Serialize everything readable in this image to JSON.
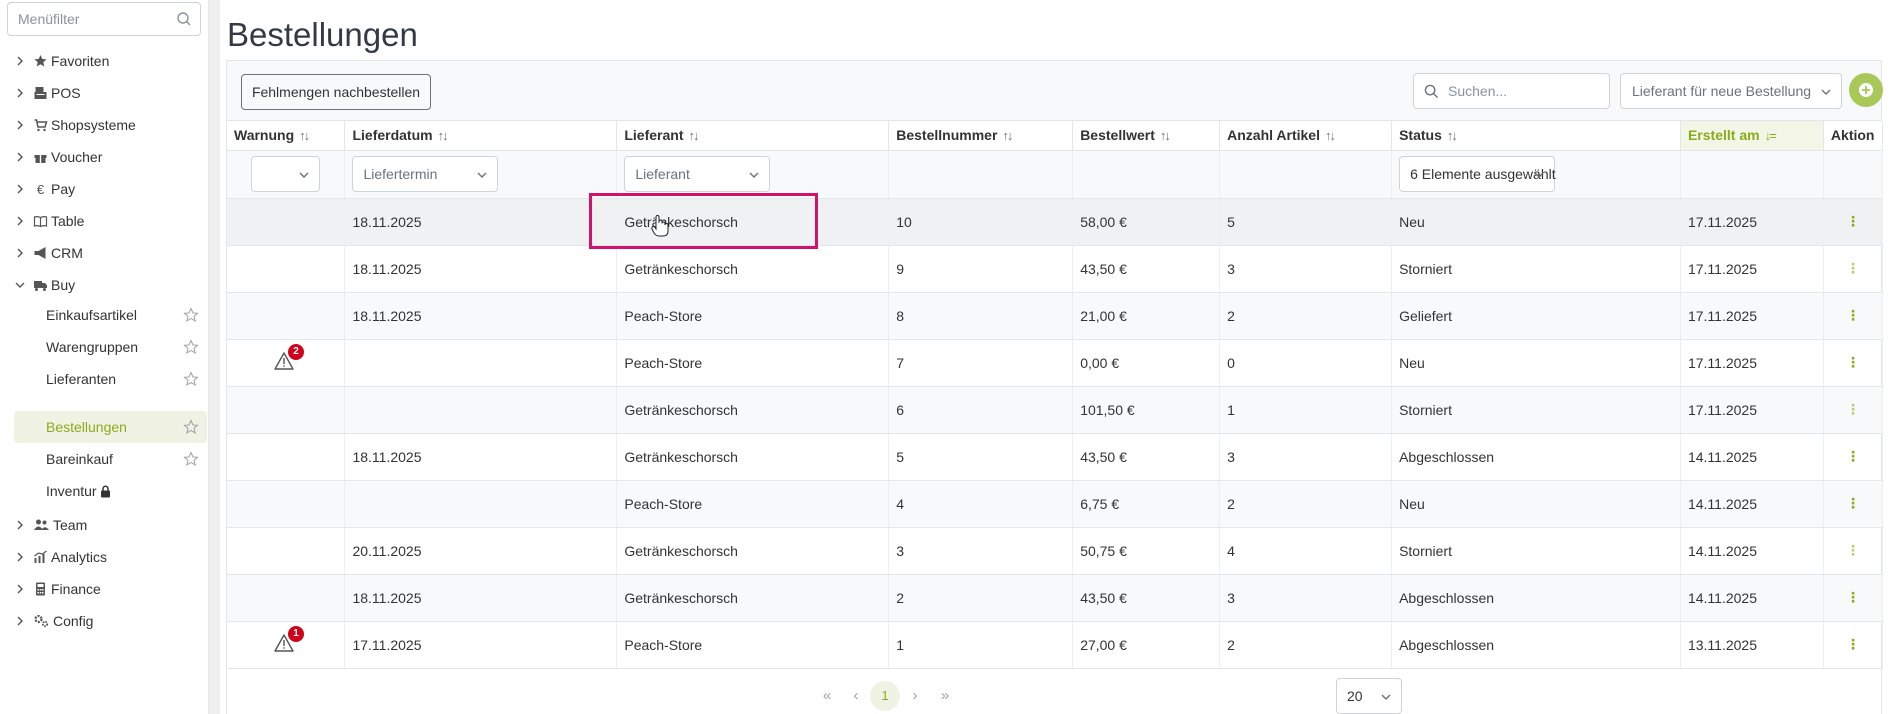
{
  "sidebar": {
    "filter_placeholder": "Menüfilter",
    "items": [
      {
        "label": "Favoriten",
        "icon": "star-icon"
      },
      {
        "label": "POS",
        "icon": "pos-icon"
      },
      {
        "label": "Shopsysteme",
        "icon": "cart-icon"
      },
      {
        "label": "Voucher",
        "icon": "gift-icon"
      },
      {
        "label": "Pay",
        "icon": "euro-icon"
      },
      {
        "label": "Table",
        "icon": "book-icon"
      },
      {
        "label": "CRM",
        "icon": "megaphone-icon"
      },
      {
        "label": "Buy",
        "icon": "truck-icon"
      },
      {
        "label": "Team",
        "icon": "users-icon"
      },
      {
        "label": "Analytics",
        "icon": "chart-icon"
      },
      {
        "label": "Finance",
        "icon": "calculator-icon"
      },
      {
        "label": "Config",
        "icon": "cogs-icon"
      }
    ],
    "buy_subitems": [
      {
        "label": "Einkaufsartikel"
      },
      {
        "label": "Warengruppen"
      },
      {
        "label": "Lieferanten"
      },
      {
        "label": "Bestellungen"
      },
      {
        "label": "Bareinkauf"
      },
      {
        "label": "Inventur"
      }
    ]
  },
  "page": {
    "title": "Bestellungen"
  },
  "toolbar": {
    "reorder_label": "Fehlmengen nachbestellen",
    "search_placeholder": "Suchen...",
    "supplier_placeholder": "Lieferant für neue Bestellung"
  },
  "table": {
    "columns": [
      "Warnung",
      "Lieferdatum",
      "Lieferant",
      "Bestellnummer",
      "Bestellwert",
      "Anzahl Artikel",
      "Status",
      "Erstellt am",
      "Aktion"
    ],
    "filters": {
      "lieferdatum": "Liefertermin",
      "lieferant": "Lieferant",
      "status": "6 Elemente ausgewählt"
    },
    "rows": [
      {
        "warn": "",
        "lieferdatum": "18.11.2025",
        "lieferant": "Getränkeschorsch",
        "nummer": "10",
        "wert": "58,00 €",
        "anzahl": "5",
        "status": "Neu",
        "erstellt": "17.11.2025",
        "action": "⋮"
      },
      {
        "warn": "",
        "lieferdatum": "18.11.2025",
        "lieferant": "Getränkeschorsch",
        "nummer": "9",
        "wert": "43,50 €",
        "anzahl": "3",
        "status": "Storniert",
        "erstellt": "17.11.2025",
        "action": "⋮"
      },
      {
        "warn": "",
        "lieferdatum": "18.11.2025",
        "lieferant": "Peach-Store",
        "nummer": "8",
        "wert": "21,00 €",
        "anzahl": "2",
        "status": "Geliefert",
        "erstellt": "17.11.2025",
        "action": "⋮"
      },
      {
        "warn": "2",
        "lieferdatum": "",
        "lieferant": "Peach-Store",
        "nummer": "7",
        "wert": "0,00 €",
        "anzahl": "0",
        "status": "Neu",
        "erstellt": "17.11.2025",
        "action": "⋮"
      },
      {
        "warn": "",
        "lieferdatum": "",
        "lieferant": "Getränkeschorsch",
        "nummer": "6",
        "wert": "101,50 €",
        "anzahl": "1",
        "status": "Storniert",
        "erstellt": "17.11.2025",
        "action": "⋮"
      },
      {
        "warn": "",
        "lieferdatum": "18.11.2025",
        "lieferant": "Getränkeschorsch",
        "nummer": "5",
        "wert": "43,50 €",
        "anzahl": "3",
        "status": "Abgeschlossen",
        "erstellt": "14.11.2025",
        "action": "⋮"
      },
      {
        "warn": "",
        "lieferdatum": "",
        "lieferant": "Peach-Store",
        "nummer": "4",
        "wert": "6,75 €",
        "anzahl": "2",
        "status": "Neu",
        "erstellt": "14.11.2025",
        "action": "⋮"
      },
      {
        "warn": "",
        "lieferdatum": "20.11.2025",
        "lieferant": "Getränkeschorsch",
        "nummer": "3",
        "wert": "50,75 €",
        "anzahl": "4",
        "status": "Storniert",
        "erstellt": "14.11.2025",
        "action": "⋮"
      },
      {
        "warn": "",
        "lieferdatum": "18.11.2025",
        "lieferant": "Getränkeschorsch",
        "nummer": "2",
        "wert": "43,50 €",
        "anzahl": "3",
        "status": "Abgeschlossen",
        "erstellt": "14.11.2025",
        "action": "⋮"
      },
      {
        "warn": "1",
        "lieferdatum": "17.11.2025",
        "lieferant": "Peach-Store",
        "nummer": "1",
        "wert": "27,00 €",
        "anzahl": "2",
        "status": "Abgeschlossen",
        "erstellt": "13.11.2025",
        "action": "⋮"
      }
    ]
  },
  "pagination": {
    "first": "«",
    "prev": "‹",
    "current": "1",
    "next": "›",
    "last": "»",
    "page_size": "20"
  },
  "colors": {
    "accent": "#8aab1c",
    "highlight": "#d1136e",
    "badge": "#d0021b"
  }
}
